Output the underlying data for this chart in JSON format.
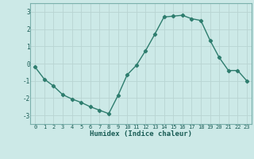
{
  "x": [
    0,
    1,
    2,
    3,
    4,
    5,
    6,
    7,
    8,
    9,
    10,
    11,
    12,
    13,
    14,
    15,
    16,
    17,
    18,
    19,
    20,
    21,
    22,
    23
  ],
  "y": [
    -0.2,
    -0.9,
    -1.3,
    -1.8,
    -2.05,
    -2.25,
    -2.5,
    -2.7,
    -2.9,
    -1.85,
    -0.65,
    -0.1,
    0.75,
    1.7,
    2.7,
    2.75,
    2.8,
    2.6,
    2.5,
    1.35,
    0.35,
    -0.4,
    -0.4,
    -1.0
  ],
  "xlabel": "Humidex (Indice chaleur)",
  "xlim": [
    -0.5,
    23.5
  ],
  "ylim": [
    -3.5,
    3.5
  ],
  "yticks": [
    -3,
    -2,
    -1,
    0,
    1,
    2,
    3
  ],
  "xticks": [
    0,
    1,
    2,
    3,
    4,
    5,
    6,
    7,
    8,
    9,
    10,
    11,
    12,
    13,
    14,
    15,
    16,
    17,
    18,
    19,
    20,
    21,
    22,
    23
  ],
  "line_color": "#2e7d6e",
  "marker": "D",
  "marker_size": 2.2,
  "bg_color": "#cce9e7",
  "grid_color": "#b8d4d2",
  "plot_bg": "#cce9e7"
}
